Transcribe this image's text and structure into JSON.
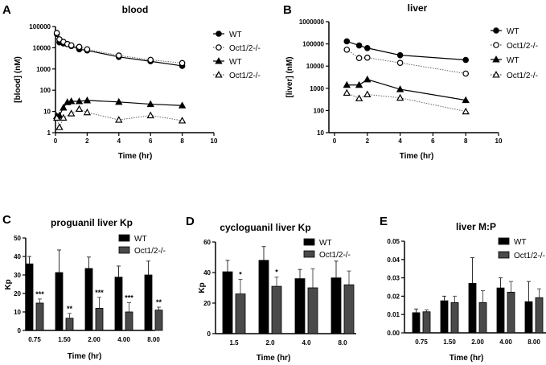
{
  "chart_data": [
    {
      "panel": "A",
      "type": "line",
      "title": "blood",
      "xlabel": "Time (hr)",
      "ylabel": "[blood] (nM)",
      "yscale": "log",
      "ylim": [
        1,
        100000
      ],
      "xlim": [
        0,
        10
      ],
      "xticks": [
        0,
        2,
        4,
        6,
        8,
        10
      ],
      "yticks": [
        1,
        10,
        100,
        1000,
        10000,
        100000
      ],
      "legend": "right",
      "series": [
        {
          "name": "WT",
          "marker": "circle-filled",
          "x": [
            0.083,
            0.25,
            0.5,
            0.75,
            1,
            1.5,
            2,
            4,
            6,
            8
          ],
          "y": [
            45000,
            18000,
            16000,
            15000,
            12000,
            8500,
            7500,
            3700,
            2300,
            1400
          ]
        },
        {
          "name": "Oct1/2-/-",
          "marker": "circle-open",
          "x": [
            0.083,
            0.25,
            0.5,
            0.75,
            1,
            1.5,
            2,
            4,
            6,
            8
          ],
          "y": [
            50000,
            25000,
            19000,
            15000,
            13000,
            11000,
            8500,
            4300,
            2700,
            1900
          ]
        },
        {
          "name": "WT",
          "marker": "triangle-filled",
          "x": [
            0.083,
            0.25,
            0.5,
            0.75,
            1,
            1.5,
            2,
            4,
            6,
            8
          ],
          "y": [
            6,
            6.5,
            15,
            27,
            30,
            30,
            33,
            28,
            22,
            19
          ]
        },
        {
          "name": "Oct1/2-/-",
          "marker": "triangle-open",
          "x": [
            0.083,
            0.25,
            0.5,
            1,
            1.5,
            2,
            4,
            6,
            8
          ],
          "y": [
            5,
            1.8,
            5,
            8,
            13,
            9,
            4,
            6.5,
            3.7
          ]
        }
      ]
    },
    {
      "panel": "B",
      "type": "line",
      "title": "liver",
      "xlabel": "Time (hr)",
      "ylabel": "[liver] (nM)",
      "yscale": "log",
      "ylim": [
        10,
        1000000
      ],
      "xlim": [
        0,
        10
      ],
      "xticks": [
        0,
        2,
        4,
        6,
        8,
        10
      ],
      "yticks": [
        10,
        100,
        1000,
        10000,
        100000,
        1000000
      ],
      "legend": "right",
      "series": [
        {
          "name": "WT",
          "marker": "circle-filled",
          "x": [
            0.75,
            1.5,
            2,
            4,
            8
          ],
          "y": [
            130000,
            85000,
            65000,
            31000,
            19000
          ]
        },
        {
          "name": "Oct1/2-/-",
          "marker": "circle-open",
          "x": [
            0.75,
            1.5,
            2,
            4,
            8
          ],
          "y": [
            55000,
            23000,
            24000,
            14000,
            4600
          ]
        },
        {
          "name": "WT",
          "marker": "triangle-filled",
          "x": [
            0.75,
            1.5,
            2,
            4,
            8
          ],
          "y": [
            1400,
            1400,
            2500,
            900,
            290
          ]
        },
        {
          "name": "Oct1/2-/-",
          "marker": "triangle-open",
          "x": [
            0.75,
            1.5,
            2,
            4,
            8
          ],
          "y": [
            620,
            350,
            530,
            370,
            90
          ]
        }
      ]
    },
    {
      "panel": "C",
      "type": "bar",
      "title": "proguanil liver Kp",
      "xlabel": "Time (hr)",
      "ylabel": "Kp",
      "ylim": [
        0,
        50
      ],
      "yticks": [
        0,
        10,
        20,
        30,
        40,
        50
      ],
      "legend": "top-right",
      "categories": [
        "0.75",
        "1.50",
        "2.00",
        "4.00",
        "8.00"
      ],
      "series": [
        {
          "name": "WT",
          "values": [
            36,
            31.3,
            33.5,
            28.8,
            30
          ],
          "error_top": [
            40,
            43.5,
            39.7,
            34.8,
            37.5
          ]
        },
        {
          "name": "Oct1/2-/-",
          "values": [
            14.8,
            6.6,
            12,
            10,
            11
          ],
          "error_top": [
            17,
            9.2,
            17.9,
            15,
            12.6
          ]
        }
      ],
      "significance": [
        "***",
        "**",
        "***",
        "***",
        "**"
      ]
    },
    {
      "panel": "D",
      "type": "bar",
      "title": "cycloguanil liver Kp",
      "xlabel": "Time (hr)",
      "ylabel": "Kp",
      "ylim": [
        0,
        60
      ],
      "yticks": [
        0,
        20,
        40,
        60
      ],
      "legend": "top-right",
      "categories": [
        "1.5",
        "2.0",
        "4.0",
        "8.0"
      ],
      "series": [
        {
          "name": "WT",
          "values": [
            40.5,
            48,
            36,
            36.5
          ],
          "error_top": [
            48,
            57,
            42,
            47.5
          ]
        },
        {
          "name": "Oct1/2-/-",
          "values": [
            26,
            31,
            30,
            32
          ],
          "error_top": [
            35.5,
            37,
            42.5,
            41
          ]
        }
      ],
      "significance": [
        "*",
        "*",
        "",
        ""
      ]
    },
    {
      "panel": "E",
      "type": "bar",
      "title": "liver M:P",
      "xlabel": "Time (hr)",
      "ylabel": "",
      "ylim": [
        0,
        0.05
      ],
      "yticks": [
        0,
        0.01,
        0.02,
        0.03,
        0.04,
        0.05
      ],
      "ytick_labels": [
        "0.00",
        "0.01",
        "0.02",
        "0.03",
        "0.04",
        "0.05"
      ],
      "legend": "top-right",
      "categories": [
        "0.75",
        "1.50",
        "2.00",
        "4.00",
        "8.00"
      ],
      "series": [
        {
          "name": "WT",
          "values": [
            0.011,
            0.0175,
            0.027,
            0.0245,
            0.017
          ],
          "error_top": [
            0.013,
            0.02,
            0.041,
            0.03,
            0.028
          ]
        },
        {
          "name": "Oct1/2-/-",
          "values": [
            0.0115,
            0.0165,
            0.0165,
            0.0222,
            0.0192
          ],
          "error_top": [
            0.0125,
            0.02,
            0.023,
            0.028,
            0.024
          ]
        }
      ],
      "significance": [
        "",
        "",
        "",
        "",
        ""
      ]
    }
  ],
  "colors": {
    "wt_bar": "#000000",
    "oct_bar": "#4a4a4a",
    "line": "#000000",
    "dotted_line": "#555555"
  }
}
